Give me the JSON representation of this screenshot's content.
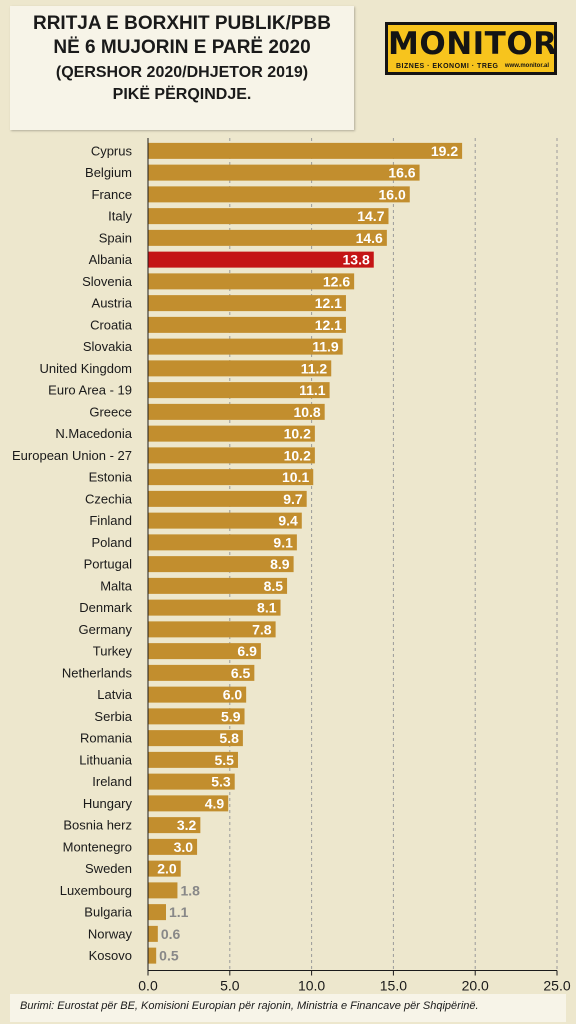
{
  "header": {
    "title_line1": "RRITJA E BORXHIT PUBLIK/PBB",
    "title_line2": "NË 6 MUJORIN E PARË 2020",
    "title_line3": "(QERSHOR 2020/DHJETOR 2019)",
    "title_line4": "PIKË PËRQINDJE."
  },
  "logo": {
    "name": "MONITOR",
    "tagline": "BIZNES · EKONOMI · TREG",
    "url": "www.monitor.al"
  },
  "source_note": "Burimi: Eurostat për BE, Komisioni Europian për rajonin, Ministria e Financave për Shqipërinë.",
  "colors": {
    "bar": "#c28e2e",
    "highlight": "#c41515",
    "background": "#ede7cd",
    "grid": "#9a9a9a",
    "small_label": "#888888"
  },
  "chart_data": {
    "type": "bar",
    "orientation": "horizontal",
    "categories": [
      "Cyprus",
      "Belgium",
      "France",
      "Italy",
      "Spain",
      "Albania",
      "Slovenia",
      "Austria",
      "Croatia",
      "Slovakia",
      "United Kingdom",
      "Euro Area - 19",
      "Greece",
      "N.Macedonia",
      "European Union - 27",
      "Estonia",
      "Czechia",
      "Finland",
      "Poland",
      "Portugal",
      "Malta",
      "Denmark",
      "Germany",
      "Turkey",
      "Netherlands",
      "Latvia",
      "Serbia",
      "Romania",
      "Lithuania",
      "Ireland",
      "Hungary",
      "Bosnia herz",
      "Montenegro",
      "Sweden",
      "Luxembourg",
      "Bulgaria",
      "Norway",
      "Kosovo"
    ],
    "values": [
      19.2,
      16.6,
      16.0,
      14.7,
      14.6,
      13.8,
      12.6,
      12.1,
      12.1,
      11.9,
      11.2,
      11.1,
      10.8,
      10.2,
      10.2,
      10.1,
      9.7,
      9.4,
      9.1,
      8.9,
      8.5,
      8.1,
      7.8,
      6.9,
      6.5,
      6.0,
      5.9,
      5.8,
      5.5,
      5.3,
      4.9,
      3.2,
      3.0,
      2.0,
      1.8,
      1.1,
      0.6,
      0.5
    ],
    "value_labels": [
      "19.2",
      "16.6",
      "16.0",
      "14.7",
      "14.6",
      "13.8",
      "12.6",
      "12.1",
      "12.1",
      "11.9",
      "11.2",
      "11.1",
      "10.8",
      "10.2",
      "10.2",
      "10.1",
      "9.7",
      "9.4",
      "9.1",
      "8.9",
      "8.5",
      "8.1",
      "7.8",
      "6.9",
      "6.5",
      "6.0",
      "5.9",
      "5.8",
      "5.5",
      "5.3",
      "4.9",
      "3.2",
      "3.0",
      "2.0",
      "1.8",
      "1.1",
      "0.6",
      "0.5"
    ],
    "highlight": "Albania",
    "xlim": [
      0,
      25
    ],
    "xticks": [
      "0.0",
      "5.0",
      "10.0",
      "15.0",
      "20.0",
      "25.0"
    ],
    "grid": "vertical dashed"
  }
}
